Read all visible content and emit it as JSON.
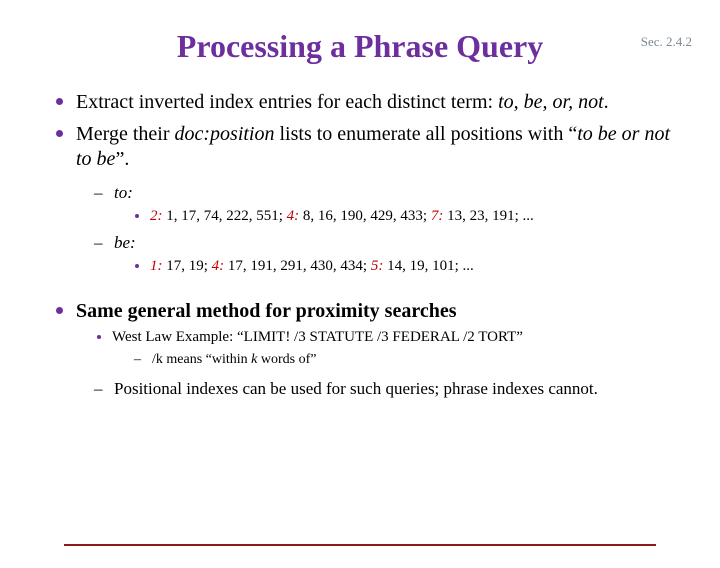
{
  "section_label": "Sec. 2.4.2",
  "title": "Processing a Phrase Query",
  "colors": {
    "title": "#6d2f9d",
    "bullet": "#6d2f9d",
    "doc_highlight": "#c00000",
    "footer_rule": "#8b1a1a",
    "section_label": "#7a8a95",
    "background": "#ffffff",
    "text": "#000000"
  },
  "bullets": {
    "b1_pre": "Extract inverted index entries for each distinct term: ",
    "b1_terms": "to, be, or, not",
    "b1_post": ".",
    "b2_pre": "Merge their ",
    "b2_docpos": "doc:position",
    "b2_mid": " lists to enumerate all positions with “",
    "b2_phrase": "to be or not to be",
    "b2_post": "”."
  },
  "terms": {
    "to_label": "to:",
    "to_entries": {
      "d1": "2:",
      "p1": " 1, 17, 74, 222, 551; ",
      "d2": "4:",
      "p2": " 8, 16, 190, 429, 433; ",
      "d3": "7:",
      "p3": " 13, 23, 191;  ..."
    },
    "be_label": "be:",
    "be_entries": {
      "d1": "1:",
      "p1": " 17, 19; ",
      "d2": "4:",
      "p2": " 17, 191, 291, 430, 434; ",
      "d3": "5:",
      "p3": " 14, 19, 101;  ..."
    }
  },
  "prox": {
    "heading": "Same general method for proximity searches",
    "westlaw": "West Law Example: “LIMIT! /3 STATUTE /3 FEDERAL /2 TORT”",
    "slashk_pre": "/k means “within ",
    "slashk_k": "k",
    "slashk_post": " words of”",
    "pos_idx": "Positional indexes can be used for such queries; phrase indexes cannot."
  }
}
